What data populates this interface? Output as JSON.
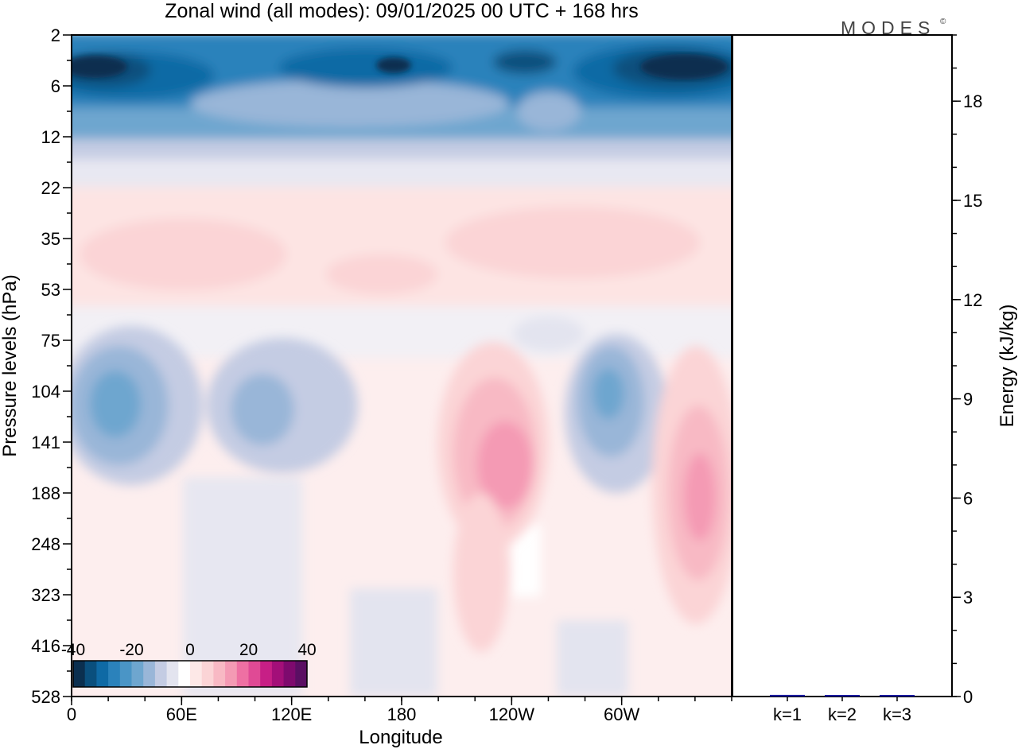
{
  "title": "Zonal wind (all modes):  09/01/2025  00 UTC  + 168 hrs",
  "logo": "MODES",
  "logo_mark": "©",
  "chart_data": [
    {
      "type": "heatmap",
      "title": "Zonal wind (all modes):  09/01/2025  00 UTC  + 168 hrs",
      "xlabel": "Longitude",
      "ylabel": "Pressure levels (hPa)",
      "x_tick_labels": [
        "0",
        "60E",
        "120E",
        "180",
        "120W",
        "60W"
      ],
      "x_tick_degrees": [
        0,
        60,
        120,
        180,
        240,
        300
      ],
      "xlim": [
        0,
        360
      ],
      "y_tick_labels": [
        "2",
        "6",
        "12",
        "22",
        "35",
        "53",
        "75",
        "104",
        "141",
        "188",
        "248",
        "323",
        "416",
        "528"
      ],
      "y_scale": "model levels (nonlinear, pressure increasing downward)",
      "colorbar": {
        "tick_labels": [
          "-40",
          "-20",
          "0",
          "20",
          "40"
        ],
        "min": -40,
        "max": 40,
        "colors": [
          "#0b2f4f",
          "#0a4f7d",
          "#0f6aa5",
          "#2b82bb",
          "#4a95c6",
          "#6ea6cf",
          "#99b6d8",
          "#c4cce3",
          "#e3e4ef",
          "#ffffff",
          "#fde8e7",
          "#fbd4d6",
          "#f8b9c4",
          "#f49ab4",
          "#ee70a3",
          "#e04a95",
          "#c71f86",
          "#a30f79",
          "#7e0a6e",
          "#5a0f63"
        ]
      },
      "features": [
        {
          "description": "strong negative (easterly) band",
          "lon": [
            0,
            360
          ],
          "level": "2-12 hPa",
          "value": -40
        },
        {
          "description": "weak positive band",
          "lon": [
            0,
            360
          ],
          "level": "22-53 hPa",
          "value": 8
        },
        {
          "description": "negative core",
          "lon": 25,
          "level": "104-141 hPa",
          "value": -22
        },
        {
          "description": "negative core",
          "lon": 105,
          "level": "104-141 hPa",
          "value": -12
        },
        {
          "description": "positive core",
          "lon": 240,
          "level": "141-188 hPa",
          "value": 22
        },
        {
          "description": "negative core",
          "lon": 290,
          "level": "104-141 hPa",
          "value": -20
        },
        {
          "description": "positive core",
          "lon": 345,
          "level": "141-248 hPa",
          "value": 22
        }
      ]
    },
    {
      "type": "bar",
      "categories": [
        "k=1",
        "k=2",
        "k=3"
      ],
      "values": [
        0.05,
        0.02,
        0.02
      ],
      "ylabel": "Energy (kJ/kg)",
      "ylim": [
        0,
        20
      ],
      "y_tick_labels": [
        "0",
        "3",
        "6",
        "9",
        "12",
        "15",
        "18"
      ],
      "bar_color": "#1a1aa0"
    }
  ]
}
